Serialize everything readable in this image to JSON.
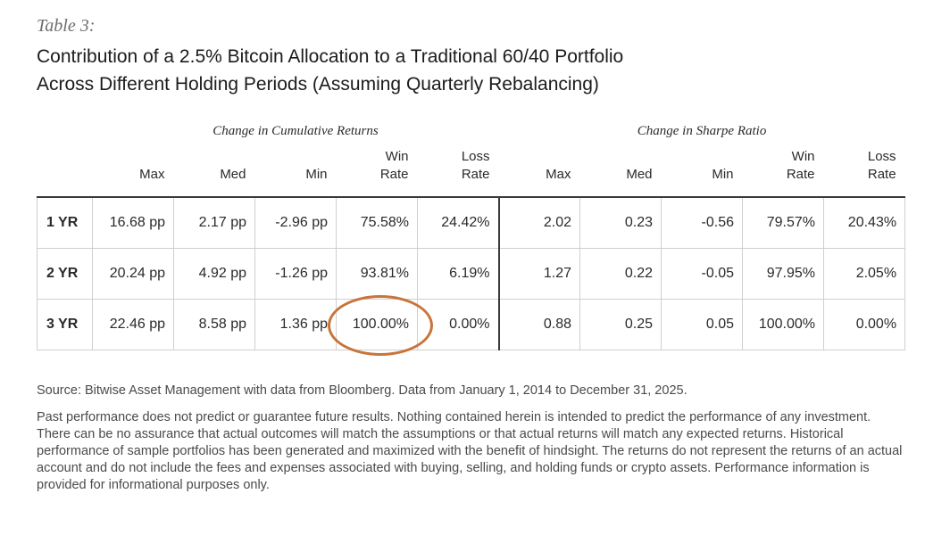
{
  "header": {
    "table_label": "Table 3:",
    "title_line1": "Contribution of a 2.5% Bitcoin Allocation to a Traditional 60/40 Portfolio",
    "title_line2": "Across Different Holding Periods (Assuming Quarterly Rebalancing)"
  },
  "table": {
    "groups": {
      "cumulative": "Change in Cumulative Returns",
      "sharpe": "Change in Sharpe Ratio"
    },
    "columns": {
      "max": "Max",
      "med": "Med",
      "min": "Min",
      "win_1": "Win",
      "win_2": "Rate",
      "loss_1": "Loss",
      "loss_2": "Rate"
    },
    "rows": [
      {
        "label": "1 YR",
        "cumulative": [
          "16.68 pp",
          "2.17 pp",
          "-2.96 pp",
          "75.58%",
          "24.42%"
        ],
        "sharpe": [
          "2.02",
          "0.23",
          "-0.56",
          "79.57%",
          "20.43%"
        ]
      },
      {
        "label": "2 YR",
        "cumulative": [
          "20.24 pp",
          "4.92 pp",
          "-1.26 pp",
          "93.81%",
          "6.19%"
        ],
        "sharpe": [
          "1.27",
          "0.22",
          "-0.05",
          "97.95%",
          "2.05%"
        ]
      },
      {
        "label": "3 YR",
        "cumulative": [
          "22.46 pp",
          "8.58 pp",
          "1.36 pp",
          "100.00%",
          "0.00%"
        ],
        "sharpe": [
          "0.88",
          "0.25",
          "0.05",
          "100.00%",
          "0.00%"
        ]
      }
    ],
    "highlight_color": "#c8743a"
  },
  "footer": {
    "source": "Source: Bitwise Asset Management with data from Bloomberg. Data from January 1, 2014 to December 31, 2025.",
    "disclaimer": "Past performance does not predict or guarantee future results. Nothing contained herein is intended to predict the performance of any investment. There can be no assurance that actual outcomes will match the assumptions or that actual returns will match any expected returns. Historical performance of sample portfolios has been generated and maximized with the benefit of hindsight. The returns do not represent the returns of an actual account and do not include the fees and expenses associated with buying, selling, and holding funds or crypto assets. Performance information is provided for informational purposes only."
  }
}
